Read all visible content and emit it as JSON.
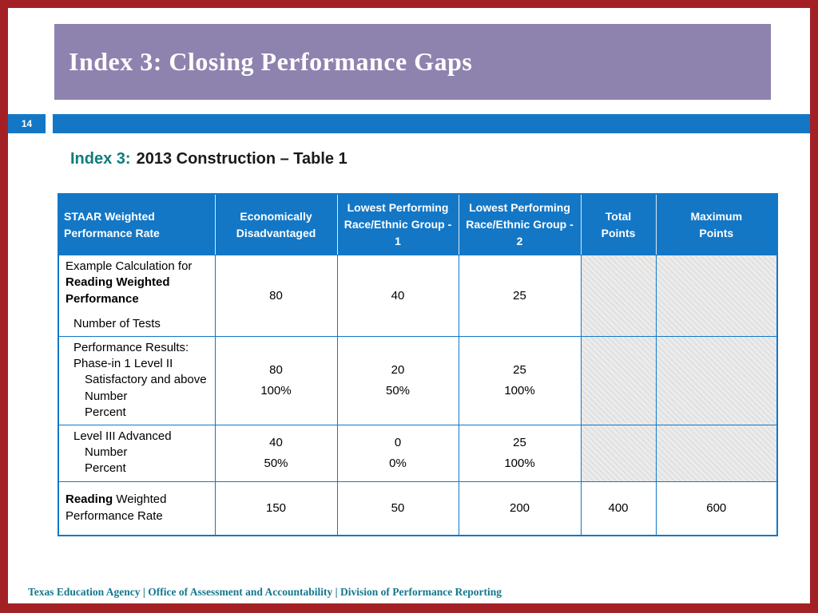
{
  "slide": {
    "number": "14",
    "title": "Index 3: Closing Performance Gaps",
    "footer": "Texas Education Agency | Office of Assessment and Accountability | Division of Performance Reporting"
  },
  "subtitle": {
    "prefix": "Index 3:",
    "text": "2013 Construction – Table 1"
  },
  "colors": {
    "border_red": "#A32125",
    "header_purple": "#8E83AE",
    "accent_blue": "#1377C6",
    "table_border_blue": "#1377C6",
    "subtitle_teal": "#0E7C7B",
    "footer_teal": "#13788F",
    "shaded_cell": "#ECECEC"
  },
  "table": {
    "headers": [
      {
        "lines": [
          "STAAR Weighted",
          "Performance Rate"
        ],
        "align": "left"
      },
      {
        "lines": [
          "Economically",
          "Disadvantaged"
        ],
        "align": "center"
      },
      {
        "lines": [
          "Lowest Performing",
          "Race/Ethnic Group - 1"
        ],
        "align": "center"
      },
      {
        "lines": [
          "Lowest Performing",
          "Race/Ethnic Group - 2"
        ],
        "align": "center"
      },
      {
        "lines": [
          "Total",
          "Points"
        ],
        "align": "center"
      },
      {
        "lines": [
          "Maximum",
          "Points"
        ],
        "align": "center"
      }
    ],
    "rows": [
      {
        "label_lines": [
          {
            "segments": [
              {
                "text": "Example Calculation for",
                "bold": false
              }
            ],
            "indent": 0
          },
          {
            "segments": [
              {
                "text": "Reading Weighted",
                "bold": true
              }
            ],
            "indent": 0
          },
          {
            "segments": [
              {
                "text": "Performance",
                "bold": true
              }
            ],
            "indent": 0
          },
          {
            "segments": [
              {
                "text": "Number of Tests",
                "bold": false
              }
            ],
            "indent": 1,
            "gap_before": true
          }
        ],
        "values": [
          [
            "80"
          ],
          [
            "40"
          ],
          [
            "25"
          ],
          [],
          []
        ],
        "shaded_last_two": true
      },
      {
        "label_lines": [
          {
            "segments": [
              {
                "text": "Performance Results:",
                "bold": false
              }
            ],
            "indent": 1
          },
          {
            "segments": [
              {
                "text": "Phase-in 1 Level II",
                "bold": false
              }
            ],
            "indent": 1
          },
          {
            "segments": [
              {
                "text": "Satisfactory and above",
                "bold": false
              }
            ],
            "indent": 2
          },
          {
            "segments": [
              {
                "text": "Number",
                "bold": false
              }
            ],
            "indent": 2
          },
          {
            "segments": [
              {
                "text": "Percent",
                "bold": false
              }
            ],
            "indent": 2
          }
        ],
        "values": [
          [
            "80",
            "100%"
          ],
          [
            "20",
            "50%"
          ],
          [
            "25",
            "100%"
          ],
          [],
          []
        ],
        "shaded_last_two": true
      },
      {
        "label_lines": [
          {
            "segments": [
              {
                "text": "Level III Advanced",
                "bold": false
              }
            ],
            "indent": 1
          },
          {
            "segments": [
              {
                "text": "Number",
                "bold": false
              }
            ],
            "indent": 2
          },
          {
            "segments": [
              {
                "text": "Percent",
                "bold": false
              }
            ],
            "indent": 2
          }
        ],
        "values": [
          [
            "40",
            "50%"
          ],
          [
            "0",
            "0%"
          ],
          [
            "25",
            "100%"
          ],
          [],
          []
        ],
        "shaded_last_two": true
      },
      {
        "label_lines": [
          {
            "segments": [
              {
                "text": "Reading",
                "bold": true
              },
              {
                "text": " Weighted",
                "bold": false
              }
            ],
            "indent": 0
          },
          {
            "segments": [
              {
                "text": "Performance Rate",
                "bold": false
              }
            ],
            "indent": 0
          }
        ],
        "values": [
          [
            "150"
          ],
          [
            "50"
          ],
          [
            "200"
          ],
          [
            "400"
          ],
          [
            "600"
          ]
        ],
        "shaded_last_two": false
      }
    ]
  }
}
